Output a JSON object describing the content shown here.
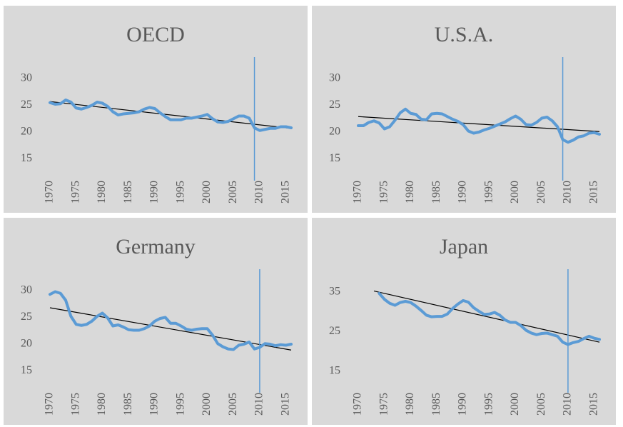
{
  "chart_data": [
    {
      "type": "line",
      "title": "OECD",
      "x": [
        1970,
        1971,
        1972,
        1973,
        1974,
        1975,
        1976,
        1977,
        1978,
        1979,
        1980,
        1981,
        1982,
        1983,
        1984,
        1985,
        1986,
        1987,
        1988,
        1989,
        1990,
        1991,
        1992,
        1993,
        1994,
        1995,
        1996,
        1997,
        1998,
        1999,
        2000,
        2001,
        2002,
        2003,
        2004,
        2005,
        2006,
        2007,
        2008,
        2009,
        2010,
        2011,
        2012,
        2013,
        2014,
        2015,
        2016
      ],
      "series": [
        {
          "color": "#5b9bd5",
          "values": [
            25.5,
            25.2,
            25.3,
            26.0,
            25.6,
            24.5,
            24.3,
            24.6,
            25.0,
            25.6,
            25.4,
            24.8,
            23.8,
            23.2,
            23.4,
            23.5,
            23.6,
            23.8,
            24.3,
            24.6,
            24.4,
            23.6,
            22.9,
            22.3,
            22.3,
            22.3,
            22.6,
            22.6,
            22.8,
            23.0,
            23.3,
            22.5,
            21.9,
            21.8,
            22.0,
            22.5,
            23.0,
            23.0,
            22.6,
            20.8,
            20.3,
            20.5,
            20.7,
            20.7,
            21.0,
            21.0,
            20.8
          ]
        }
      ],
      "trend": {
        "color": "#000000",
        "x": [
          1970,
          2016
        ],
        "values": [
          25.7,
          20.7
        ]
      },
      "vline": {
        "color": "#5b9bd5",
        "x": 2009
      },
      "xlim": [
        1970,
        2016
      ],
      "xticks": [
        1970,
        1975,
        1980,
        1985,
        1990,
        1995,
        2000,
        2005,
        2010,
        2015
      ],
      "ylim": [
        12,
        32
      ],
      "yticks": [
        15,
        20,
        25,
        30
      ]
    },
    {
      "type": "line",
      "title": "U.S.A.",
      "x": [
        1970,
        1971,
        1972,
        1973,
        1974,
        1975,
        1976,
        1977,
        1978,
        1979,
        1980,
        1981,
        1982,
        1983,
        1984,
        1985,
        1986,
        1987,
        1988,
        1989,
        1990,
        1991,
        1992,
        1993,
        1994,
        1995,
        1996,
        1997,
        1998,
        1999,
        2000,
        2001,
        2002,
        2003,
        2004,
        2005,
        2006,
        2007,
        2008,
        2009,
        2010,
        2011,
        2012,
        2013,
        2014,
        2015,
        2016
      ],
      "series": [
        {
          "color": "#5b9bd5",
          "values": [
            21.2,
            21.2,
            21.8,
            22.1,
            21.7,
            20.6,
            21.0,
            22.2,
            23.6,
            24.3,
            23.5,
            23.3,
            22.4,
            22.3,
            23.4,
            23.5,
            23.4,
            22.9,
            22.4,
            22.0,
            21.4,
            20.2,
            19.8,
            20.0,
            20.4,
            20.7,
            21.1,
            21.5,
            21.9,
            22.5,
            23.0,
            22.4,
            21.4,
            21.3,
            21.8,
            22.6,
            22.8,
            22.1,
            21.0,
            18.6,
            18.1,
            18.5,
            19.1,
            19.3,
            19.8,
            19.9,
            19.6
          ]
        }
      ],
      "trend": {
        "color": "#000000",
        "x": [
          1970,
          2016
        ],
        "values": [
          22.9,
          20.1
        ]
      },
      "vline": {
        "color": "#5b9bd5",
        "x": 2009
      },
      "xlim": [
        1970,
        2016
      ],
      "xticks": [
        1970,
        1975,
        1980,
        1985,
        1990,
        1995,
        2000,
        2005,
        2010,
        2015
      ],
      "ylim": [
        12,
        32
      ],
      "yticks": [
        15,
        20,
        25,
        30
      ]
    },
    {
      "type": "line",
      "title": "Germany",
      "x": [
        1970,
        1971,
        1972,
        1973,
        1974,
        1975,
        1976,
        1977,
        1978,
        1979,
        1980,
        1981,
        1982,
        1983,
        1984,
        1985,
        1986,
        1987,
        1988,
        1989,
        1990,
        1991,
        1992,
        1993,
        1994,
        1995,
        1996,
        1997,
        1998,
        1999,
        2000,
        2001,
        2002,
        2003,
        2004,
        2005,
        2006,
        2007,
        2008,
        2009,
        2010,
        2011,
        2012,
        2013,
        2014,
        2015,
        2016
      ],
      "series": [
        {
          "color": "#5b9bd5",
          "values": [
            29.3,
            29.8,
            29.5,
            28.2,
            25.2,
            23.7,
            23.5,
            23.7,
            24.3,
            25.2,
            25.8,
            24.9,
            23.4,
            23.6,
            23.2,
            22.7,
            22.6,
            22.6,
            22.9,
            23.4,
            24.3,
            24.8,
            25.0,
            23.9,
            23.9,
            23.4,
            22.8,
            22.6,
            22.8,
            22.9,
            22.9,
            21.7,
            20.1,
            19.5,
            19.1,
            19.0,
            19.8,
            20.0,
            20.4,
            19.1,
            19.4,
            20.1,
            20.0,
            19.7,
            19.9,
            19.8,
            20.0
          ]
        }
      ],
      "trend": {
        "color": "#000000",
        "x": [
          1970,
          2016
        ],
        "values": [
          26.8,
          18.9
        ]
      },
      "vline": {
        "color": "#5b9bd5",
        "x": 2010
      },
      "xlim": [
        1970,
        2016
      ],
      "xticks": [
        1970,
        1975,
        1980,
        1985,
        1990,
        1995,
        2000,
        2005,
        2010,
        2015
      ],
      "ylim": [
        12,
        32
      ],
      "yticks": [
        15,
        20,
        25,
        30
      ]
    },
    {
      "type": "line",
      "title": "Japan",
      "x": [
        1970,
        1971,
        1972,
        1973,
        1974,
        1975,
        1976,
        1977,
        1978,
        1979,
        1980,
        1981,
        1982,
        1983,
        1984,
        1985,
        1986,
        1987,
        1988,
        1989,
        1990,
        1991,
        1992,
        1993,
        1994,
        1995,
        1996,
        1997,
        1998,
        1999,
        2000,
        2001,
        2002,
        2003,
        2004,
        2005,
        2006,
        2007,
        2008,
        2009,
        2010,
        2011,
        2012,
        2013,
        2014,
        2015,
        2016
      ],
      "series": [
        {
          "color": "#5b9bd5",
          "values": [
            null,
            null,
            null,
            null,
            34.6,
            33.1,
            32.1,
            31.6,
            32.3,
            32.6,
            32.3,
            31.4,
            30.3,
            29.1,
            28.7,
            28.8,
            28.8,
            29.4,
            30.8,
            31.9,
            32.8,
            32.4,
            31.0,
            30.1,
            29.3,
            29.4,
            29.8,
            29.1,
            27.9,
            27.3,
            27.3,
            26.5,
            25.3,
            24.6,
            24.2,
            24.5,
            24.6,
            24.2,
            23.8,
            22.3,
            21.7,
            22.2,
            22.5,
            23.2,
            23.8,
            23.3,
            23.0
          ]
        }
      ],
      "trend": {
        "color": "#000000",
        "x": [
          1973,
          2016
        ],
        "values": [
          35.2,
          22.3
        ]
      },
      "vline": {
        "color": "#5b9bd5",
        "x": 2010
      },
      "xlim": [
        1970,
        2016
      ],
      "xticks": [
        1970,
        1975,
        1980,
        1985,
        1990,
        1995,
        2000,
        2005,
        2010,
        2015
      ],
      "ylim": [
        11,
        38
      ],
      "yticks": [
        15,
        25,
        35
      ]
    }
  ]
}
